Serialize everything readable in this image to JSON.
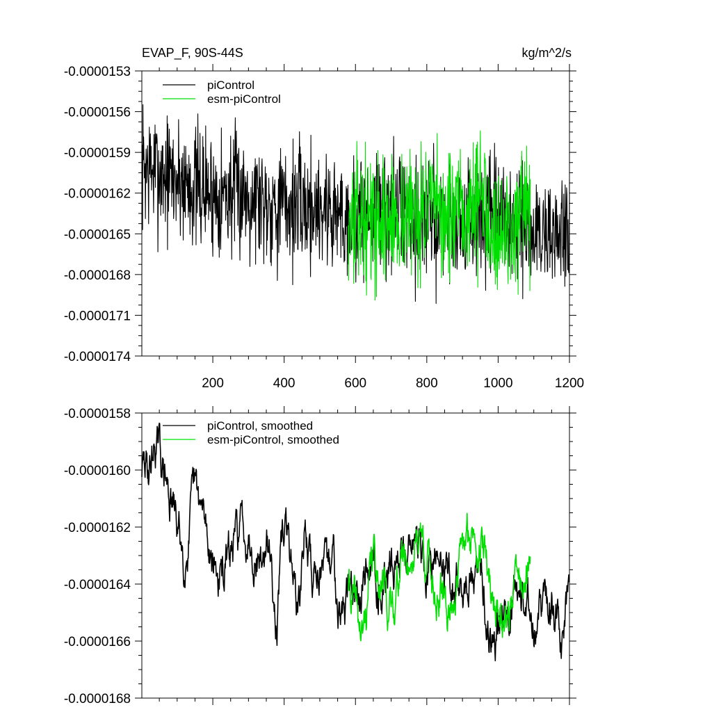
{
  "figure": {
    "title_left": "EVAP_F, 90S-44S",
    "units": "kg/m^2/s"
  },
  "chart_data": [
    {
      "type": "line",
      "panel": "top",
      "title": "EVAP_F, 90S-44S",
      "ylabel": "kg/m^2/s",
      "xlim": [
        1,
        1200
      ],
      "ylim": [
        -1.74e-05,
        -1.53e-05
      ],
      "x_ticks": [
        200,
        400,
        600,
        800,
        1000,
        1200
      ],
      "x_tick_labels": [
        "200",
        "400",
        "600",
        "800",
        "1000",
        "1200"
      ],
      "y_ticks": [
        -1.53e-05,
        -1.56e-05,
        -1.59e-05,
        -1.62e-05,
        -1.65e-05,
        -1.68e-05,
        -1.71e-05,
        -1.74e-05
      ],
      "y_tick_labels": [
        "-0.0000153",
        "-0.0000156",
        "-0.0000159",
        "-0.0000162",
        "-0.0000165",
        "-0.0000168",
        "-0.0000171",
        "-0.0000174"
      ],
      "legend_position": "top-left",
      "series": [
        {
          "name": "piControl",
          "color": "#000000",
          "x_range": [
            1,
            1200
          ],
          "anchors": [
            [
              1,
              -1.6e-05
            ],
            [
              100,
              -1.61e-05
            ],
            [
              200,
              -1.62e-05
            ],
            [
              300,
              -1.62e-05
            ],
            [
              400,
              -1.63e-05
            ],
            [
              500,
              -1.63e-05
            ],
            [
              600,
              -1.64e-05
            ],
            [
              700,
              -1.63e-05
            ],
            [
              800,
              -1.64e-05
            ],
            [
              900,
              -1.64e-05
            ],
            [
              1000,
              -1.64e-05
            ],
            [
              1100,
              -1.65e-05
            ],
            [
              1200,
              -1.65e-05
            ]
          ],
          "amplitude": 4e-07,
          "seed": 7
        },
        {
          "name": "esm-piControl",
          "color": "#00e000",
          "x_range": [
            580,
            1090
          ],
          "anchors": [
            [
              580,
              -1.64e-05
            ],
            [
              700,
              -1.64e-05
            ],
            [
              800,
              -1.63e-05
            ],
            [
              900,
              -1.64e-05
            ],
            [
              950,
              -1.62e-05
            ],
            [
              1000,
              -1.65e-05
            ],
            [
              1090,
              -1.64e-05
            ]
          ],
          "amplitude": 4e-07,
          "seed": 13
        }
      ]
    },
    {
      "type": "line",
      "panel": "bottom",
      "xlim": [
        1,
        1200
      ],
      "ylim": [
        -1.68e-05,
        -1.58e-05
      ],
      "x_ticks": [
        200,
        400,
        600,
        800,
        1000,
        1200
      ],
      "y_ticks": [
        -1.58e-05,
        -1.6e-05,
        -1.62e-05,
        -1.64e-05,
        -1.66e-05,
        -1.68e-05
      ],
      "y_tick_labels": [
        "-0.0000158",
        "-0.0000160",
        "-0.0000162",
        "-0.0000164",
        "-0.0000166",
        "-0.0000168"
      ],
      "legend_position": "top-left",
      "series": [
        {
          "name": "piControl, smoothed",
          "color": "#000000",
          "x_range": [
            1,
            1200
          ],
          "anchors": [
            [
              1,
              -1.6e-05
            ],
            [
              20,
              -1.6e-05
            ],
            [
              40,
              -1.59e-05
            ],
            [
              60,
              -1.6e-05
            ],
            [
              80,
              -1.61e-05
            ],
            [
              100,
              -1.62e-05
            ],
            [
              120,
              -1.63e-05
            ],
            [
              150,
              -1.61e-05
            ],
            [
              180,
              -1.62e-05
            ],
            [
              200,
              -1.63e-05
            ],
            [
              220,
              -1.64e-05
            ],
            [
              250,
              -1.63e-05
            ],
            [
              280,
              -1.62e-05
            ],
            [
              300,
              -1.62e-05
            ],
            [
              330,
              -1.63e-05
            ],
            [
              360,
              -1.63e-05
            ],
            [
              380,
              -1.65e-05
            ],
            [
              400,
              -1.62e-05
            ],
            [
              420,
              -1.63e-05
            ],
            [
              440,
              -1.65e-05
            ],
            [
              460,
              -1.62e-05
            ],
            [
              480,
              -1.64e-05
            ],
            [
              500,
              -1.63e-05
            ],
            [
              520,
              -1.64e-05
            ],
            [
              540,
              -1.63e-05
            ],
            [
              560,
              -1.65e-05
            ],
            [
              600,
              -1.64e-05
            ],
            [
              640,
              -1.63e-05
            ],
            [
              680,
              -1.64e-05
            ],
            [
              720,
              -1.63e-05
            ],
            [
              760,
              -1.62e-05
            ],
            [
              800,
              -1.64e-05
            ],
            [
              840,
              -1.63e-05
            ],
            [
              880,
              -1.64e-05
            ],
            [
              920,
              -1.64e-05
            ],
            [
              960,
              -1.64e-05
            ],
            [
              980,
              -1.66e-05
            ],
            [
              1000,
              -1.65e-05
            ],
            [
              1050,
              -1.64e-05
            ],
            [
              1100,
              -1.65e-05
            ],
            [
              1150,
              -1.65e-05
            ],
            [
              1180,
              -1.66e-05
            ],
            [
              1200,
              -1.64e-05
            ]
          ],
          "amplitude": 8e-08,
          "seed": 29
        },
        {
          "name": "esm-piControl, smoothed",
          "color": "#00e000",
          "x_range": [
            580,
            1090
          ],
          "anchors": [
            [
              580,
              -1.64e-05
            ],
            [
              600,
              -1.65e-05
            ],
            [
              620,
              -1.66e-05
            ],
            [
              650,
              -1.63e-05
            ],
            [
              680,
              -1.64e-05
            ],
            [
              700,
              -1.65e-05
            ],
            [
              730,
              -1.63e-05
            ],
            [
              760,
              -1.63e-05
            ],
            [
              780,
              -1.62e-05
            ],
            [
              820,
              -1.64e-05
            ],
            [
              860,
              -1.65e-05
            ],
            [
              900,
              -1.63e-05
            ],
            [
              940,
              -1.62e-05
            ],
            [
              960,
              -1.63e-05
            ],
            [
              1000,
              -1.65e-05
            ],
            [
              1030,
              -1.65e-05
            ],
            [
              1050,
              -1.64e-05
            ],
            [
              1090,
              -1.64e-05
            ]
          ],
          "amplitude": 8e-08,
          "seed": 41
        }
      ]
    }
  ]
}
